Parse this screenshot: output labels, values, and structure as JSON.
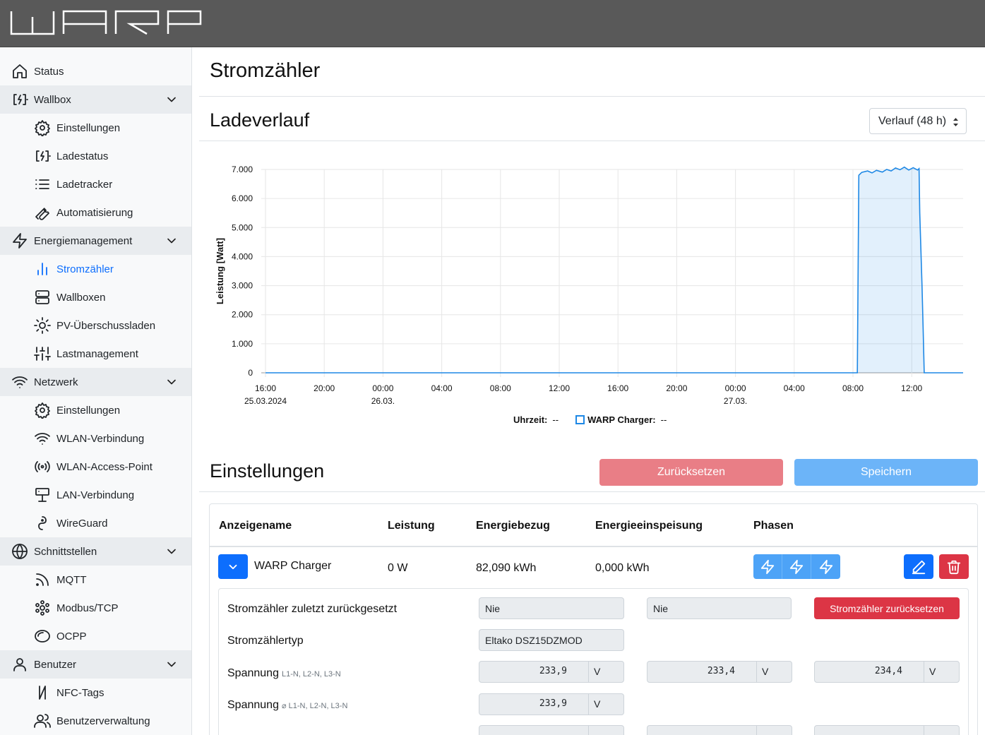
{
  "app": {
    "logo_text": "WARP"
  },
  "sidebar": {
    "items": [
      {
        "label": "Status",
        "icon": "home-icon",
        "level": 0,
        "group": false
      },
      {
        "label": "Wallbox",
        "icon": "charger-icon",
        "level": 0,
        "group": true
      },
      {
        "label": "Einstellungen",
        "icon": "gear-icon",
        "level": 1
      },
      {
        "label": "Ladestatus",
        "icon": "charger-icon",
        "level": 1
      },
      {
        "label": "Ladetracker",
        "icon": "list-icon",
        "level": 1
      },
      {
        "label": "Automatisierung",
        "icon": "wrench-icon",
        "level": 1
      },
      {
        "label": "Energiemanagement",
        "icon": "bolt-icon",
        "level": 0,
        "group": true
      },
      {
        "label": "Stromzähler",
        "icon": "bar-chart-icon",
        "level": 1,
        "active": true
      },
      {
        "label": "Wallboxen",
        "icon": "server-icon",
        "level": 1
      },
      {
        "label": "PV-Überschussladen",
        "icon": "sun-icon",
        "level": 1
      },
      {
        "label": "Lastmanagement",
        "icon": "sliders-icon",
        "level": 1
      },
      {
        "label": "Netzwerk",
        "icon": "wifi-icon",
        "level": 0,
        "group": true
      },
      {
        "label": "Einstellungen",
        "icon": "gear-icon",
        "level": 1
      },
      {
        "label": "WLAN-Verbindung",
        "icon": "wifi-icon",
        "level": 1
      },
      {
        "label": "WLAN-Access-Point",
        "icon": "broadcast-icon",
        "level": 1
      },
      {
        "label": "LAN-Verbindung",
        "icon": "lan-icon",
        "level": 1
      },
      {
        "label": "WireGuard",
        "icon": "wireguard-icon",
        "level": 1
      },
      {
        "label": "Schnittstellen",
        "icon": "globe-icon",
        "level": 0,
        "group": true
      },
      {
        "label": "MQTT",
        "icon": "rss-icon",
        "level": 1
      },
      {
        "label": "Modbus/TCP",
        "icon": "modbus-icon",
        "level": 1
      },
      {
        "label": "OCPP",
        "icon": "ocpp-icon",
        "level": 1
      },
      {
        "label": "Benutzer",
        "icon": "user-icon",
        "level": 0,
        "group": true
      },
      {
        "label": "NFC-Tags",
        "icon": "nfc-icon",
        "level": 1
      },
      {
        "label": "Benutzerverwaltung",
        "icon": "users-icon",
        "level": 1
      }
    ]
  },
  "page": {
    "title": "Stromzähler",
    "chart_section": {
      "title": "Ladeverlauf",
      "range_select": "Verlauf (48 h)"
    },
    "settings_section": {
      "title": "Einstellungen",
      "reset_label": "Zurücksetzen",
      "save_label": "Speichern"
    }
  },
  "chart_data": {
    "type": "area",
    "ylabel": "Leistung [Watt]",
    "yticks": [
      "0",
      "1.000",
      "2.000",
      "3.000",
      "4.000",
      "5.000",
      "6.000",
      "7.000"
    ],
    "ylim": [
      0,
      7000
    ],
    "xticks": [
      {
        "l1": "16:00",
        "l2": "25.03.2024"
      },
      {
        "l1": "20:00",
        "l2": ""
      },
      {
        "l1": "00:00",
        "l2": "26.03."
      },
      {
        "l1": "04:00",
        "l2": ""
      },
      {
        "l1": "08:00",
        "l2": ""
      },
      {
        "l1": "12:00",
        "l2": ""
      },
      {
        "l1": "16:00",
        "l2": ""
      },
      {
        "l1": "20:00",
        "l2": ""
      },
      {
        "l1": "00:00",
        "l2": "27.03."
      },
      {
        "l1": "04:00",
        "l2": ""
      },
      {
        "l1": "08:00",
        "l2": ""
      },
      {
        "l1": "12:00",
        "l2": ""
      }
    ],
    "x_range_hours": [
      0,
      47.5
    ],
    "series": [
      {
        "name": "WARP Charger",
        "color": "#1e88e5",
        "points": [
          [
            0,
            0
          ],
          [
            40.3,
            0
          ],
          [
            40.4,
            6800
          ],
          [
            40.6,
            6900
          ],
          [
            41.0,
            6950
          ],
          [
            41.3,
            6880
          ],
          [
            41.6,
            6970
          ],
          [
            42.0,
            6910
          ],
          [
            42.3,
            7000
          ],
          [
            42.6,
            6950
          ],
          [
            42.9,
            7050
          ],
          [
            43.2,
            6990
          ],
          [
            43.5,
            7080
          ],
          [
            43.8,
            6980
          ],
          [
            44.1,
            7060
          ],
          [
            44.4,
            6980
          ],
          [
            44.5,
            7030
          ],
          [
            44.55,
            5500
          ],
          [
            44.7,
            3000
          ],
          [
            44.78,
            1500
          ],
          [
            44.85,
            0
          ],
          [
            47.5,
            0
          ]
        ]
      }
    ],
    "legend": {
      "time_label": "Uhrzeit:",
      "time_value": "--",
      "series_label": "WARP Charger:",
      "series_value": "--"
    }
  },
  "table": {
    "headers": [
      "Anzeigename",
      "Leistung",
      "Energiebezug",
      "Energieeinspeisung",
      "Phasen"
    ],
    "row": {
      "name": "WARP Charger",
      "power": "0 W",
      "import": "82,090 kWh",
      "export": "0,000 kWh"
    },
    "detail": {
      "last_reset_label": "Stromzähler zuletzt zurückgesetzt",
      "last_reset_values": [
        "Nie",
        "Nie"
      ],
      "reset_meter_label": "Stromzähler zurücksetzen",
      "meter_type_label": "Stromzählertyp",
      "meter_type_value": "Eltako DSZ15DZMOD",
      "voltage_label": "Spannung",
      "voltage_sub": "L1-N, L2-N, L3-N",
      "voltage_values": [
        "233,9",
        "233,4",
        "234,4"
      ],
      "voltage_avg_label": "Spannung",
      "voltage_avg_sub": "⌀ L1-N, L2-N, L3-N",
      "voltage_avg_value": "233,9",
      "unit_v": "V"
    }
  }
}
